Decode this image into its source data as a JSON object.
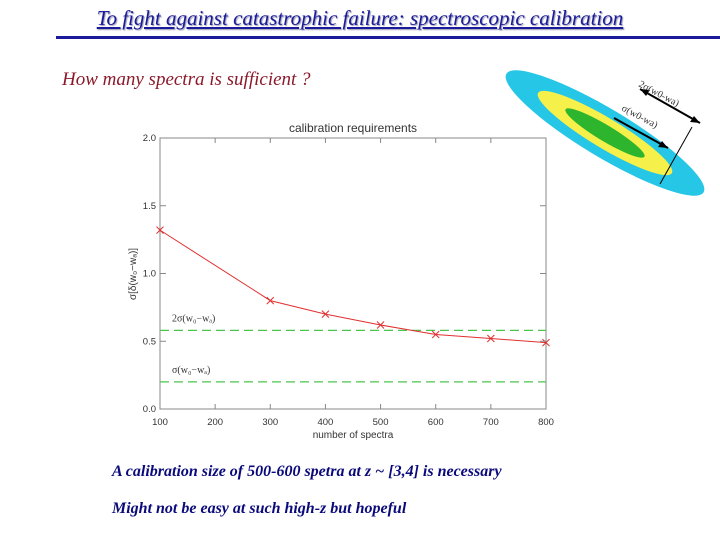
{
  "slide": {
    "title": "To fight against catastrophic failure:   spectroscopic calibration",
    "question": "How many spectra is sufficient ?",
    "conclusion_1": "A calibration size of 500-600 spetra at z ~ [3,4] is necessary",
    "conclusion_2": "Might not be easy at such high-z but hopeful"
  },
  "colors": {
    "title": "#1a1a9a",
    "question": "#8b1a2a",
    "conclusion": "#0a0a7a",
    "series": "#e03030",
    "reference": "#4cc44c"
  },
  "chart_data": [
    {
      "type": "line",
      "title": "calibration requirements",
      "xlabel": "number of spectra",
      "ylabel": "σ[δ(w₀−wₐ)]",
      "xlim": [
        100,
        800
      ],
      "ylim": [
        0.0,
        2.0
      ],
      "x_ticks": [
        "100",
        "200",
        "300",
        "400",
        "500",
        "600",
        "700",
        "800"
      ],
      "y_ticks": [
        "0.0",
        "0.5",
        "1.0",
        "1.5",
        "2.0"
      ],
      "grid": false,
      "series": [
        {
          "x": [
            100,
            300,
            400,
            500,
            600,
            700,
            800
          ],
          "y": [
            1.32,
            0.8,
            0.7,
            0.62,
            0.55,
            0.52,
            0.49
          ]
        }
      ],
      "reference_lines": [
        {
          "y": 0.58,
          "label": "2σ(w₀−wₐ)"
        },
        {
          "y": 0.2,
          "label": "σ(w₀−wₐ)"
        }
      ]
    },
    {
      "type": "diagram",
      "labels": [
        "2σ(w0-wa)",
        "σ(w0-wa)"
      ],
      "colors": [
        "#26c6e6",
        "#f5f04a",
        "#2eb52e"
      ]
    }
  ]
}
